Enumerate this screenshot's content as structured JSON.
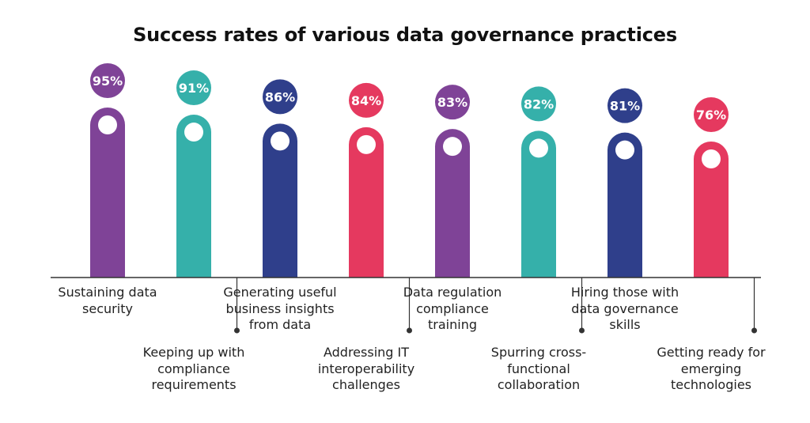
{
  "title": "Success rates of various data governance practices",
  "colors": {
    "purple": "#7f4397",
    "teal": "#35b0aa",
    "navy": "#2f3f8b",
    "pink": "#e5395f",
    "axis": "#333333"
  },
  "chart_data": {
    "type": "bar",
    "title": "Success rates of various data governance practices",
    "categories": [
      "Sustaining data security",
      "Keeping up with compliance requirements",
      "Generating useful business insights from data",
      "Addressing IT interoperability challenges",
      "Data regulation compliance training",
      "Spurring cross-functional collaboration",
      "Hiring those with data governance skills",
      "Getting ready for emerging technologies"
    ],
    "values": [
      95,
      91,
      86,
      84,
      83,
      82,
      81,
      76
    ],
    "data_labels": [
      "95%",
      "91%",
      "86%",
      "84%",
      "83%",
      "82%",
      "81%",
      "76%"
    ],
    "bar_colors": [
      "purple",
      "teal",
      "navy",
      "pink",
      "purple",
      "teal",
      "navy",
      "pink"
    ],
    "label_position": [
      "above",
      "below",
      "above",
      "below",
      "above",
      "below",
      "above",
      "below"
    ],
    "ylim": [
      0,
      100
    ],
    "xlabel": "",
    "ylabel": ""
  }
}
